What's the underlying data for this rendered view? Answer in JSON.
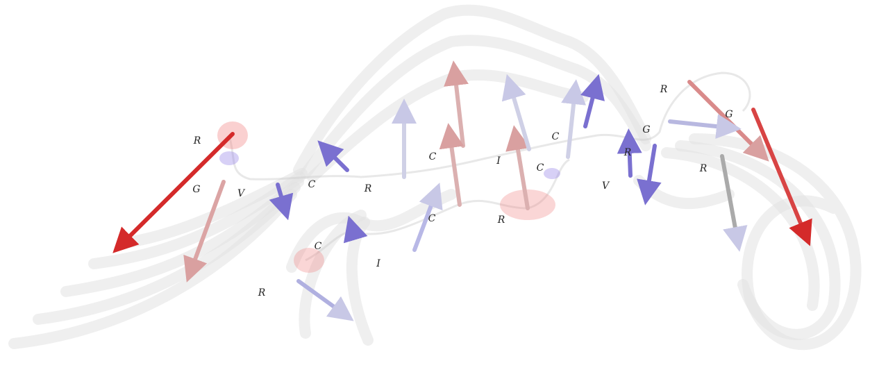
{
  "labels": [
    "R",
    "G",
    "V",
    "C",
    "R",
    "C",
    "I",
    "C",
    "C",
    "R",
    "V",
    "G",
    "R",
    "G",
    "R",
    "C",
    "R",
    "C",
    "I",
    "R"
  ]
}
